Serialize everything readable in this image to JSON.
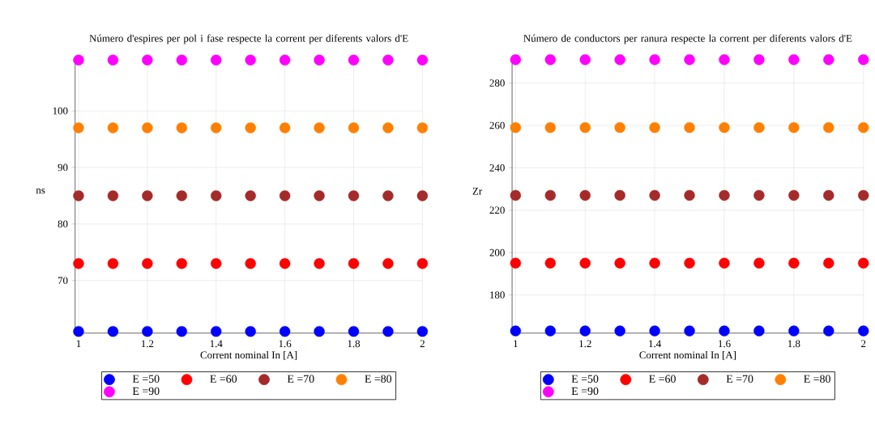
{
  "chart_data": [
    {
      "type": "scatter",
      "title": "Número d'espires per pol i fase respecte la corrent per diferents valors d'E",
      "xlabel": "Corrent nominal In [A]",
      "ylabel": "ns",
      "x": [
        1,
        1.1,
        1.2,
        1.3,
        1.4,
        1.5,
        1.6,
        1.7,
        1.8,
        1.9,
        2
      ],
      "series": [
        {
          "name": "E =50",
          "color": "#0000ff",
          "values": [
            61,
            61,
            61,
            61,
            61,
            61,
            61,
            61,
            61,
            61,
            61
          ]
        },
        {
          "name": "E =60",
          "color": "#ff0000",
          "values": [
            73,
            73,
            73,
            73,
            73,
            73,
            73,
            73,
            73,
            73,
            73
          ]
        },
        {
          "name": "E =70",
          "color": "#a52a2a",
          "values": [
            85,
            85,
            85,
            85,
            85,
            85,
            85,
            85,
            85,
            85,
            85
          ]
        },
        {
          "name": "E =80",
          "color": "#ff8000",
          "values": [
            97,
            97,
            97,
            97,
            97,
            97,
            97,
            97,
            97,
            97,
            97
          ]
        },
        {
          "name": "E =90",
          "color": "#ff00ff",
          "values": [
            109,
            109,
            109,
            109,
            109,
            109,
            109,
            109,
            109,
            109,
            109
          ]
        }
      ],
      "xlim": [
        0.99,
        2
      ],
      "ylim": [
        60.7,
        109.2
      ],
      "xticks": [
        1,
        1.2,
        1.4,
        1.6,
        1.8,
        2
      ],
      "yticks": [
        70,
        80,
        90,
        100
      ],
      "grid": true,
      "legend": "bottom",
      "marker": "circle"
    },
    {
      "type": "scatter",
      "title": "Número de conductors per ranura respecte la corrent per diferents valors d'E",
      "xlabel": "Corrent nominal In [A]",
      "ylabel": "Zr",
      "x": [
        1,
        1.1,
        1.2,
        1.3,
        1.4,
        1.5,
        1.6,
        1.7,
        1.8,
        1.9,
        2
      ],
      "series": [
        {
          "name": "E =50",
          "color": "#0000ff",
          "values": [
            163,
            163,
            163,
            163,
            163,
            163,
            163,
            163,
            163,
            163,
            163
          ]
        },
        {
          "name": "E =60",
          "color": "#ff0000",
          "values": [
            195,
            195,
            195,
            195,
            195,
            195,
            195,
            195,
            195,
            195,
            195
          ]
        },
        {
          "name": "E =70",
          "color": "#a52a2a",
          "values": [
            227,
            227,
            227,
            227,
            227,
            227,
            227,
            227,
            227,
            227,
            227
          ]
        },
        {
          "name": "E =80",
          "color": "#ff8000",
          "values": [
            259,
            259,
            259,
            259,
            259,
            259,
            259,
            259,
            259,
            259,
            259
          ]
        },
        {
          "name": "E =90",
          "color": "#ff00ff",
          "values": [
            291,
            291,
            291,
            291,
            291,
            291,
            291,
            291,
            291,
            291,
            291
          ]
        }
      ],
      "xlim": [
        0.99,
        2
      ],
      "ylim": [
        162,
        291.4
      ],
      "xticks": [
        1,
        1.2,
        1.4,
        1.6,
        1.8,
        2
      ],
      "yticks": [
        180,
        200,
        220,
        240,
        260,
        280
      ],
      "grid": true,
      "legend": "bottom",
      "marker": "circle"
    }
  ]
}
